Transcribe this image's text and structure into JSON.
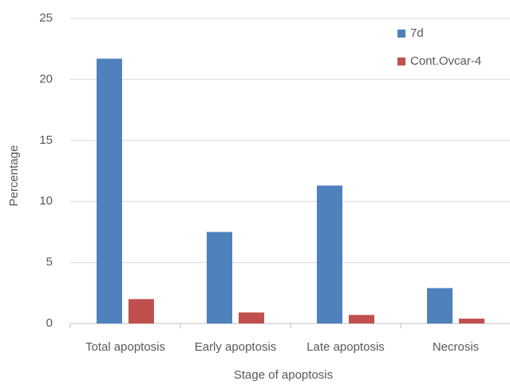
{
  "chart_data": {
    "type": "bar",
    "categories": [
      "Total apoptosis",
      "Early apoptosis",
      "Late apoptosis",
      "Necrosis"
    ],
    "series": [
      {
        "name": "7d",
        "color": "#4f81bd",
        "values": [
          21.7,
          7.5,
          11.3,
          2.9
        ]
      },
      {
        "name": "Cont.Ovcar-4",
        "color": "#c0504d",
        "values": [
          2.0,
          0.9,
          0.7,
          0.4
        ]
      }
    ],
    "xlabel": "Stage of apoptosis",
    "ylabel": "Percentage",
    "ylim": [
      0,
      25
    ],
    "yticks": [
      0,
      5,
      10,
      15,
      20,
      25
    ],
    "grid": true,
    "legend": "upper right"
  }
}
